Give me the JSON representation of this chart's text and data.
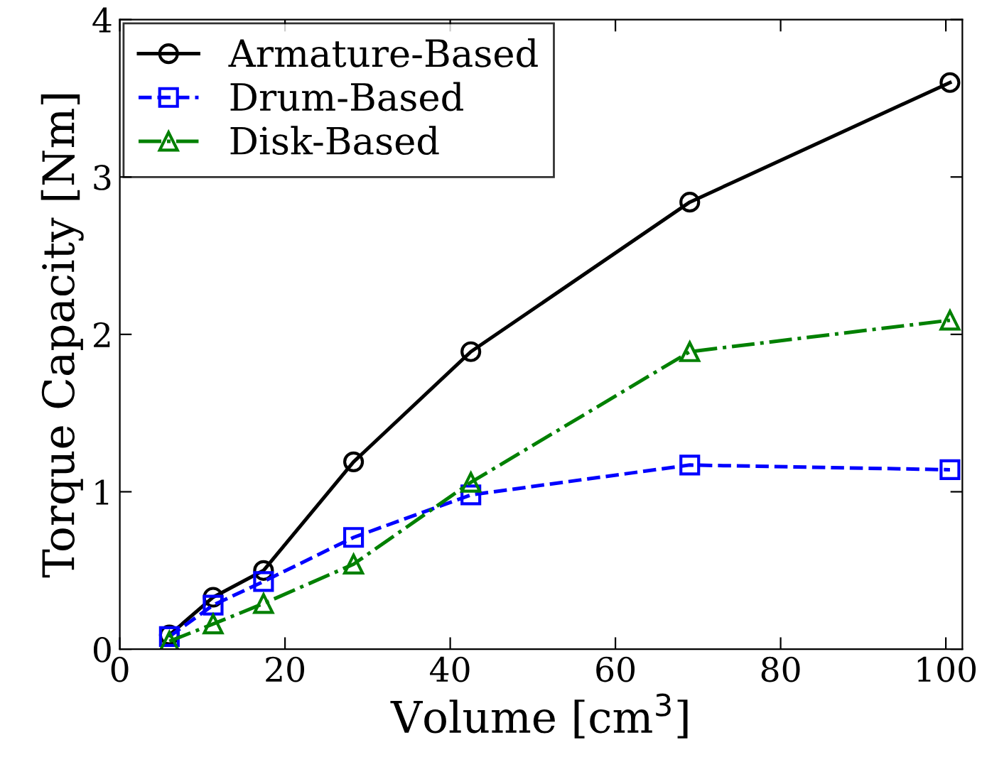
{
  "chart_data": {
    "type": "line",
    "xlabel": "Volume [cm$^{3}$]",
    "ylabel": "Torque Capacity [Nm]",
    "x": [
      6,
      11.3,
      17.4,
      28.3,
      42.5,
      69,
      100.5
    ],
    "xlim": [
      0,
      102
    ],
    "xticks": [
      0,
      20,
      40,
      60,
      80,
      100
    ],
    "ylim": [
      0,
      4
    ],
    "yticks": [
      0,
      1,
      2,
      3,
      4
    ],
    "grid": false,
    "legend": "top left",
    "series": [
      {
        "name": "Armature-Based",
        "color": "#000000",
        "marker": "circle",
        "line_style": "solid",
        "values": [
          0.09,
          0.33,
          0.5,
          1.19,
          1.89,
          2.84,
          3.6
        ]
      },
      {
        "name": "Drum-Based",
        "color": "#0000ff",
        "marker": "square",
        "line_style": "dashed",
        "values": [
          0.08,
          0.28,
          0.43,
          0.71,
          0.98,
          1.17,
          1.14
        ]
      },
      {
        "name": "Disk-Based",
        "color": "#008000",
        "marker": "triangle",
        "line_style": "dashdot",
        "values": [
          0.05,
          0.16,
          0.29,
          0.54,
          1.06,
          1.89,
          2.09
        ]
      }
    ]
  }
}
